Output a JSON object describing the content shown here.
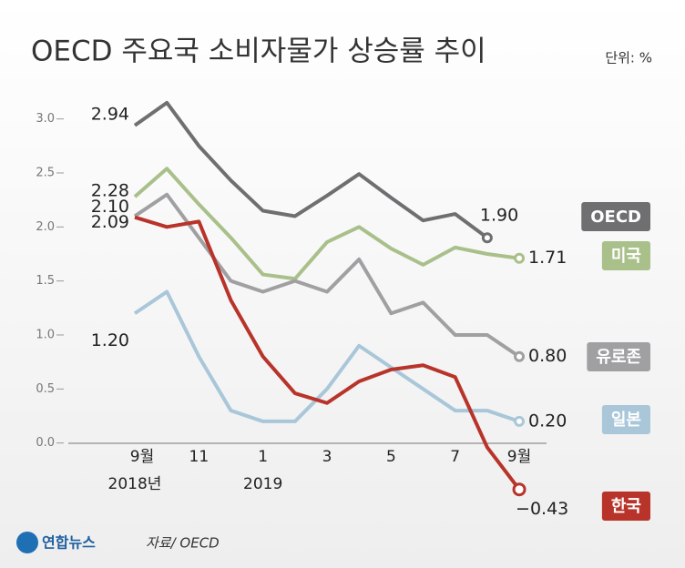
{
  "chart_data": {
    "type": "line",
    "title": "OECD 주요국 소비자물가 상승률 추이",
    "unit": "단위: %",
    "source": "자료/ OECD",
    "logo": "연합뉴스",
    "categories": [
      "9월",
      null,
      "11",
      null,
      "1",
      null,
      "3",
      null,
      "5",
      null,
      "7",
      null,
      "9월"
    ],
    "year_labels": [
      "2018년",
      "2019"
    ],
    "ylim": [
      -0.5,
      3.25
    ],
    "yticks": [
      {
        "value": 0,
        "label": "0.0"
      },
      0.5,
      {
        "value": 1,
        "label": "1.0"
      },
      1.5,
      {
        "value": 2,
        "label": "2.0"
      },
      2.5,
      {
        "value": 3,
        "label": "3.0"
      }
    ],
    "series": [
      {
        "name": "OECD",
        "color": "#6f6f71",
        "values": [
          2.94,
          3.15,
          2.75,
          2.43,
          2.15,
          2.1,
          2.29,
          2.49,
          2.27,
          2.06,
          2.12,
          1.9,
          null
        ],
        "value_labels": [
          "2.94",
          null,
          null,
          null,
          null,
          null,
          null,
          null,
          null,
          null,
          null,
          "1.90",
          null
        ]
      },
      {
        "name": "미국",
        "color": "#a9c08a",
        "values": [
          2.28,
          2.54,
          2.21,
          1.9,
          1.56,
          1.52,
          1.86,
          2.0,
          1.8,
          1.65,
          1.81,
          1.75,
          1.71
        ],
        "value_labels": [
          "2.28",
          null,
          null,
          null,
          null,
          null,
          null,
          null,
          null,
          null,
          null,
          null,
          "1.71"
        ]
      },
      {
        "name": "유로존",
        "color": "#a0a0a2",
        "values": [
          2.1,
          2.3,
          1.9,
          1.5,
          1.4,
          1.5,
          1.4,
          1.7,
          1.2,
          1.3,
          1.0,
          1.0,
          0.8
        ],
        "value_labels": [
          "2.10",
          null,
          null,
          null,
          null,
          null,
          null,
          null,
          null,
          null,
          null,
          null,
          "0.80"
        ]
      },
      {
        "name": "일본",
        "color": "#a9c7d9",
        "values": [
          1.2,
          1.4,
          0.8,
          0.3,
          0.2,
          0.2,
          0.5,
          0.9,
          0.7,
          0.5,
          0.3,
          0.3,
          0.2
        ],
        "value_labels": [
          "1.20",
          null,
          null,
          null,
          null,
          null,
          null,
          null,
          null,
          null,
          null,
          null,
          "0.20"
        ]
      },
      {
        "name": "한국",
        "color": "#b8342a",
        "values": [
          2.09,
          2.0,
          2.05,
          1.32,
          0.8,
          0.46,
          0.37,
          0.57,
          0.68,
          0.72,
          0.61,
          -0.04,
          -0.43
        ],
        "value_labels": [
          "2.09",
          null,
          null,
          null,
          null,
          null,
          null,
          null,
          null,
          null,
          null,
          null,
          "−0.43"
        ]
      }
    ]
  }
}
